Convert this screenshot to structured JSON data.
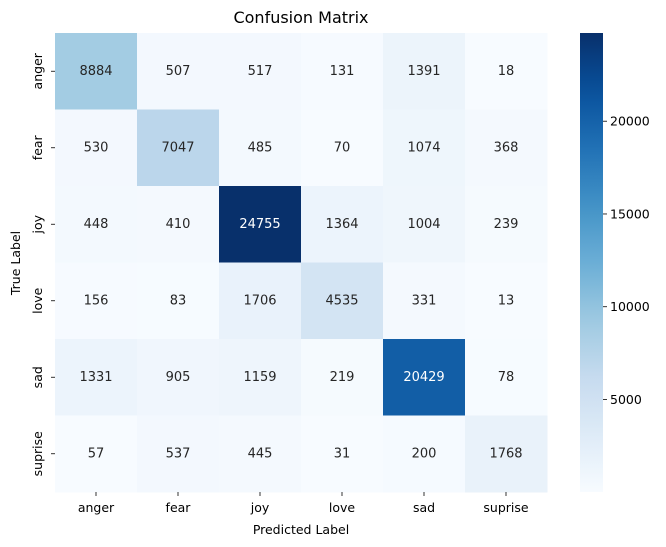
{
  "chart_data": {
    "type": "heatmap",
    "title": "Confusion Matrix",
    "xlabel": "Predicted Label",
    "ylabel": "True Label",
    "x_categories": [
      "anger",
      "fear",
      "joy",
      "love",
      "sad",
      "suprise"
    ],
    "y_categories": [
      "anger",
      "fear",
      "joy",
      "love",
      "sad",
      "suprise"
    ],
    "values": [
      [
        8884,
        507,
        517,
        131,
        1391,
        18
      ],
      [
        530,
        7047,
        485,
        70,
        1074,
        368
      ],
      [
        448,
        410,
        24755,
        1364,
        1004,
        239
      ],
      [
        156,
        83,
        1706,
        4535,
        331,
        13
      ],
      [
        1331,
        905,
        1159,
        219,
        20429,
        78
      ],
      [
        57,
        537,
        445,
        31,
        200,
        1768
      ]
    ],
    "colormap": "Blues",
    "colorbar": {
      "vmin": 13,
      "vmax": 24755,
      "ticks": [
        5000,
        10000,
        15000,
        20000
      ]
    },
    "colors": {
      "low": "#f7fbff",
      "high": "#08306b",
      "text_dark": "#262626",
      "text_light": "#ffffff"
    }
  }
}
